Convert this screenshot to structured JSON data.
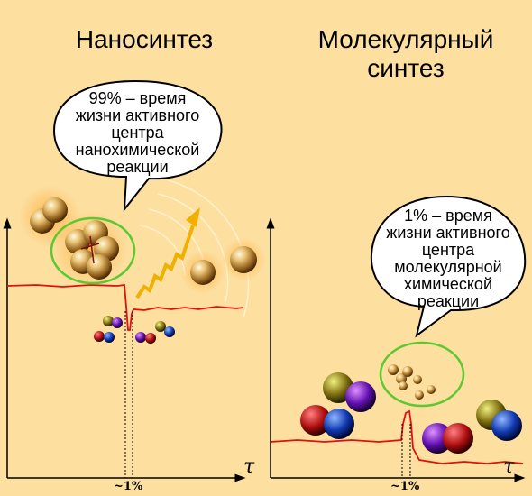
{
  "panels": [
    {
      "title_lines": [
        "Наносинтез"
      ],
      "bubble_lines": [
        "99% – время",
        "жизни активного",
        "центра",
        "нанохимической",
        "реакции"
      ],
      "axis_label": "τ",
      "duration_label": "~1%"
    },
    {
      "title_lines": [
        "Молекулярный",
        "синтез"
      ],
      "bubble_lines": [
        "1% – время",
        "жизни активного",
        "центра",
        "молекулярной",
        "химической",
        "реакции"
      ],
      "axis_label": "τ",
      "duration_label": "~1%"
    }
  ],
  "colors": {
    "background": "#fddfa0",
    "signal": "#e01010",
    "highlight_ring": "#5ec832",
    "wave_arrow": "#f0b000"
  }
}
